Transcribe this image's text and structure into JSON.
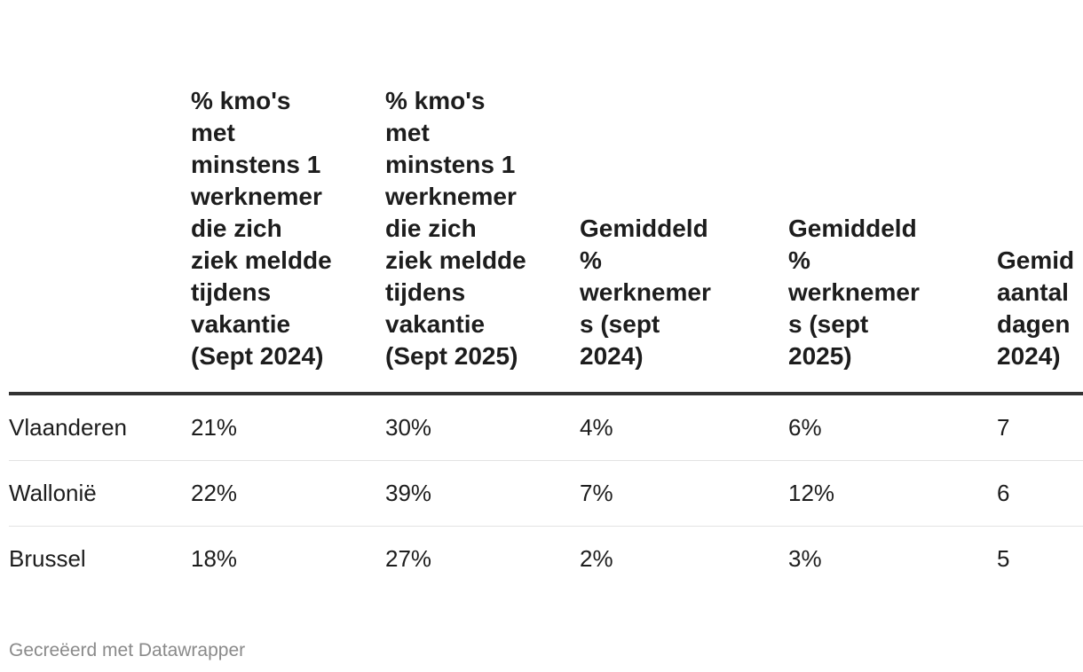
{
  "chart_data": {
    "type": "table",
    "columns": [
      "",
      "% kmo's met minstens 1 werknemer die zich ziek meldde tijdens vakantie (Sept 2024)",
      "% kmo's met minstens 1 werknemer die zich ziek meldde tijdens vakantie (Sept 2025)",
      "Gemiddeld % werknemers (sept 2024)",
      "Gemiddeld % werknemers (sept 2025)",
      "Gemid aantal dagen 2024)"
    ],
    "rows": [
      {
        "region": "Vlaanderen",
        "values": [
          "21%",
          "30%",
          "4%",
          "6%",
          "7"
        ]
      },
      {
        "region": "Wallonië",
        "values": [
          "22%",
          "39%",
          "7%",
          "12%",
          "6"
        ]
      },
      {
        "region": "Brussel",
        "values": [
          "18%",
          "27%",
          "2%",
          "3%",
          "5"
        ]
      }
    ]
  },
  "footer": {
    "credit": "Gecreëerd met Datawrapper"
  }
}
